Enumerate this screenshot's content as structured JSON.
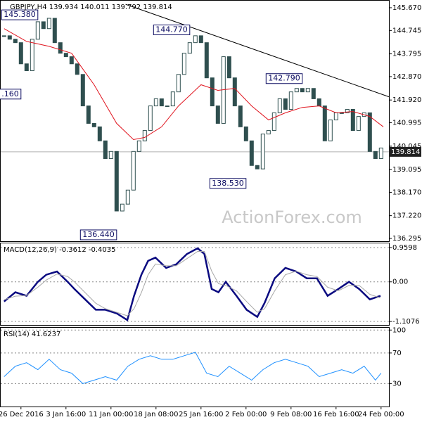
{
  "chart_data": [
    {
      "type": "candlestick",
      "title": "GBPJPY,H4  139.934 140.011 139.792 139.814",
      "watermark": "ActionForex.com",
      "color_up": "#ffffff",
      "color_down": "#2f4f4f",
      "outline": "#2f4f4f",
      "x": [
        0,
        1,
        2,
        3,
        4,
        5,
        6,
        7,
        8,
        9,
        10,
        11,
        12,
        13,
        14,
        15,
        16,
        17,
        18,
        19,
        20,
        21,
        22,
        23,
        24,
        25,
        26,
        27,
        28,
        29,
        30,
        31,
        32,
        33,
        34,
        35,
        36,
        37,
        38,
        39,
        40,
        41,
        42,
        43,
        44,
        45,
        46,
        47,
        48,
        49,
        50,
        51,
        52,
        53,
        54,
        55,
        56,
        57,
        58,
        59,
        60,
        61,
        62,
        63,
        64,
        65,
        66,
        67
      ],
      "values": [
        144.53,
        144.39,
        144.25,
        143.39,
        143.11,
        144.39,
        145.1,
        144.82,
        145.24,
        144.25,
        143.82,
        143.68,
        143.39,
        142.96,
        141.68,
        140.97,
        140.83,
        140.26,
        139.54,
        139.83,
        137.41,
        137.69,
        138.26,
        139.83,
        140.26,
        140.68,
        141.68,
        141.97,
        141.68,
        141.68,
        142.25,
        142.96,
        143.82,
        144.25,
        144.53,
        144.25,
        142.82,
        141.68,
        140.97,
        143.68,
        142.82,
        141.68,
        140.83,
        140.26,
        139.26,
        139.12,
        140.54,
        140.68,
        141.4,
        141.97,
        141.54,
        142.25,
        142.39,
        142.25,
        142.39,
        141.97,
        141.68,
        140.26,
        141.11,
        141.4,
        141.4,
        141.54,
        140.68,
        141.25,
        141.4,
        139.83,
        139.54,
        139.97
      ],
      "ma": {
        "color": "#e0141e",
        "x": [
          0,
          4,
          8,
          12,
          16,
          20,
          23,
          25,
          28,
          31,
          35,
          38,
          41,
          44,
          47,
          50,
          53,
          56,
          59,
          62,
          65,
          67.4
        ],
        "values": [
          144.82,
          144.3,
          144.1,
          143.82,
          142.54,
          140.97,
          140.31,
          140.4,
          140.83,
          141.68,
          142.54,
          142.31,
          142.39,
          141.68,
          141.11,
          141.4,
          141.62,
          141.68,
          141.4,
          141.45,
          141.25,
          140.83
        ]
      },
      "trendline": {
        "color": "#000000",
        "x": [
          21.6,
          68.4
        ],
        "values": [
          145.81,
          142.05
        ]
      },
      "annotations": [
        {
          "label": "145.380",
          "value": 145.38,
          "x": 6
        },
        {
          "label": ".160",
          "value": 142.16,
          "x": 3
        },
        {
          "label": "144.770",
          "value": 144.77,
          "x": 33
        },
        {
          "label": "142.790",
          "value": 142.79,
          "x": 53
        },
        {
          "label": "138.530",
          "value": 138.53,
          "x": 43
        },
        {
          "label": "136.440",
          "value": 136.44,
          "x": 20
        }
      ],
      "last": 139.814,
      "xlim": [
        -0.6,
        68.4
      ],
      "ylim": [
        136.181,
        145.955
      ],
      "yticks": [
        {
          "value": 145.67,
          "label": "145.670"
        },
        144.745,
        143.795,
        {
          "value": 142.87,
          "label": "142.870"
        },
        {
          "value": 141.92,
          "label": "141.920"
        },
        140.995,
        140.045,
        139.095,
        {
          "value": 138.17,
          "label": "138.170"
        },
        {
          "value": 137.22,
          "label": "137.220"
        },
        136.295
      ],
      "grid": false
    },
    {
      "type": "line",
      "title": "MACD(12,26,9) -0.3612 -0.4035",
      "x": [
        0,
        2,
        4,
        6,
        7.5,
        9.4,
        11.3,
        12.5,
        14.4,
        16.3,
        18,
        20,
        21.9,
        23.1,
        24.4,
        25.6,
        26.9,
        28.8,
        30.6,
        32.5,
        34.4,
        35.6,
        36.9,
        38.1,
        39.4,
        41.3,
        43.1,
        45,
        46.3,
        48.1,
        50,
        51.9,
        53.8,
        55.6,
        57.5,
        59.4,
        61.3,
        63.1,
        65,
        66.9
      ],
      "series": [
        {
          "color": "#0a0a80",
          "width": 2.5,
          "values": [
            -0.55,
            -0.29,
            -0.39,
            0,
            0.2,
            0.29,
            0,
            -0.2,
            -0.49,
            -0.78,
            -0.78,
            -0.88,
            -1.07,
            -0.39,
            0.2,
            0.59,
            0.68,
            0.39,
            0.49,
            0.78,
            0.94,
            0.78,
            -0.2,
            -0.29,
            0,
            -0.39,
            -0.78,
            -0.98,
            -0.59,
            0.1,
            0.39,
            0.29,
            0.1,
            0.1,
            -0.39,
            -0.2,
            0,
            -0.2,
            -0.49,
            -0.39
          ]
        },
        {
          "color": "#a8a8a8",
          "width": 1,
          "values": [
            -0.5,
            -0.4,
            -0.38,
            -0.15,
            0.05,
            0.22,
            0.15,
            0.0,
            -0.3,
            -0.6,
            -0.75,
            -0.85,
            -0.95,
            -0.75,
            -0.3,
            0.2,
            0.5,
            0.45,
            0.45,
            0.65,
            0.85,
            0.85,
            0.3,
            -0.05,
            -0.1,
            -0.25,
            -0.55,
            -0.85,
            -0.75,
            -0.25,
            0.2,
            0.3,
            0.2,
            0.15,
            -0.15,
            -0.25,
            -0.1,
            -0.1,
            -0.35,
            -0.45
          ]
        }
      ],
      "xlim": [
        -0.6,
        68.4
      ],
      "ylim": [
        -1.205,
        1.077
      ],
      "yticks": [
        0.9598,
        {
          "value": 0,
          "label": "0.00"
        },
        -1.1076
      ],
      "grid": true
    },
    {
      "type": "line",
      "title": "RSI(14) 41.6237",
      "x": [
        0,
        2,
        4,
        6,
        8,
        10,
        12,
        14,
        16,
        18,
        20,
        22,
        24,
        26,
        28,
        30,
        32,
        34,
        36,
        38,
        40,
        42,
        44,
        46,
        48,
        50,
        52,
        54,
        56,
        58,
        60,
        62,
        64,
        66,
        67
      ],
      "series": [
        {
          "color": "#1e90ff",
          "width": 1,
          "values": [
            39.1,
            52.7,
            57.3,
            48.2,
            61.8,
            48.2,
            43.6,
            30,
            34.5,
            39.1,
            34.5,
            52.7,
            61.8,
            66.4,
            61.8,
            61.8,
            66.4,
            70.9,
            43.6,
            39.1,
            52.7,
            43.6,
            34.5,
            48.2,
            57.3,
            61.8,
            57.3,
            52.7,
            39.1,
            43.6,
            48.2,
            43.6,
            52.7,
            34.5,
            43.6
          ]
        }
      ],
      "xlim": [
        -0.6,
        68.4
      ],
      "ylim": [
        0,
        103
      ],
      "yticks": [
        100,
        70,
        30
      ],
      "grid": true,
      "xticks": [
        {
          "value": 3,
          "label": "26 Dec 2016"
        },
        {
          "value": 11,
          "label": "3 Jan 16:00"
        },
        {
          "value": 19,
          "label": "11 Jan 00:00"
        },
        {
          "value": 27,
          "label": "18 Jan 08:00"
        },
        {
          "value": 35,
          "label": "25 Jan 16:00"
        },
        {
          "value": 43,
          "label": "2 Feb 00:00"
        },
        {
          "value": 51,
          "label": "9 Feb 08:00"
        },
        {
          "value": 59,
          "label": "16 Feb 16:00"
        },
        {
          "value": 67,
          "label": "24 Feb 00:00"
        }
      ]
    }
  ]
}
